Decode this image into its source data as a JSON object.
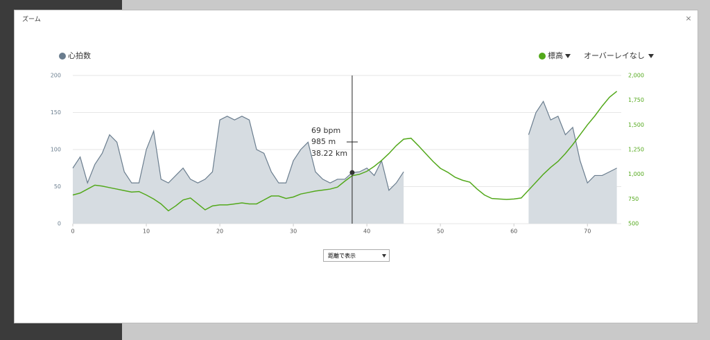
{
  "modal": {
    "title": "ズーム",
    "close": "×"
  },
  "controls": {
    "overlay_menu": "オーバーレイなし",
    "x_mode_select": "距離で表示"
  },
  "tooltip": {
    "heart_rate": "69 bpm",
    "elevation": "985 m",
    "distance": "38.22 km"
  },
  "chart_data": {
    "type": "area-line",
    "x": [
      0,
      1,
      2,
      3,
      4,
      5,
      6,
      7,
      8,
      9,
      10,
      11,
      12,
      13,
      14,
      15,
      16,
      17,
      18,
      19,
      20,
      21,
      22,
      23,
      24,
      25,
      26,
      27,
      28,
      29,
      30,
      31,
      32,
      33,
      34,
      35,
      36,
      37,
      38,
      39,
      40,
      41,
      42,
      43,
      44,
      45,
      46,
      47,
      48,
      49,
      50,
      51,
      52,
      53,
      54,
      55,
      56,
      57,
      58,
      59,
      60,
      61,
      62,
      63,
      64,
      65,
      66,
      67,
      68,
      69,
      70,
      71,
      72,
      73,
      74
    ],
    "series": [
      {
        "name": "心拍数",
        "color": "#6a7d8e",
        "fill": "#d6dce1",
        "values": [
          75,
          90,
          55,
          80,
          95,
          120,
          110,
          70,
          55,
          55,
          100,
          125,
          60,
          55,
          65,
          75,
          60,
          55,
          60,
          70,
          140,
          145,
          140,
          145,
          140,
          100,
          95,
          70,
          55,
          55,
          85,
          100,
          110,
          70,
          60,
          55,
          60,
          60,
          69,
          70,
          75,
          65,
          85,
          45,
          55,
          70,
          null,
          null,
          null,
          null,
          null,
          null,
          null,
          null,
          null,
          null,
          null,
          null,
          null,
          null,
          null,
          null,
          120,
          150,
          165,
          140,
          145,
          120,
          130,
          85,
          55,
          65,
          65,
          70,
          75
        ]
      },
      {
        "name": "標高",
        "color": "#52a81a",
        "axis": "y2",
        "values": [
          790,
          810,
          850,
          890,
          880,
          865,
          850,
          835,
          820,
          825,
          790,
          750,
          700,
          630,
          680,
          740,
          760,
          700,
          640,
          680,
          690,
          690,
          700,
          710,
          700,
          700,
          740,
          780,
          780,
          755,
          770,
          800,
          815,
          830,
          840,
          850,
          870,
          930,
          985,
          1000,
          1030,
          1080,
          1140,
          1210,
          1290,
          1355,
          1365,
          1290,
          1210,
          1130,
          1060,
          1020,
          970,
          940,
          920,
          850,
          790,
          755,
          750,
          745,
          750,
          760,
          840,
          920,
          1000,
          1070,
          1130,
          1210,
          1300,
          1400,
          1500,
          1590,
          1690,
          1780,
          1840
        ]
      }
    ],
    "xlim": [
      0,
      74.6
    ],
    "xticks": [
      0,
      10,
      20,
      30,
      40,
      50,
      60,
      70
    ],
    "ylim": [
      0,
      200
    ],
    "yticks": [
      0,
      50,
      100,
      150,
      200
    ],
    "y2lim": [
      500,
      2000
    ],
    "y2ticks": [
      500,
      750,
      {
        "value": 1000,
        "label": "1,000"
      },
      {
        "value": 1250,
        "label": "1,250"
      },
      {
        "value": 1500,
        "label": "1,500"
      },
      {
        "value": 1750,
        "label": "1,750"
      },
      {
        "value": 2000,
        "label": "2,000"
      }
    ],
    "grid": true,
    "cursor_index": 38
  }
}
